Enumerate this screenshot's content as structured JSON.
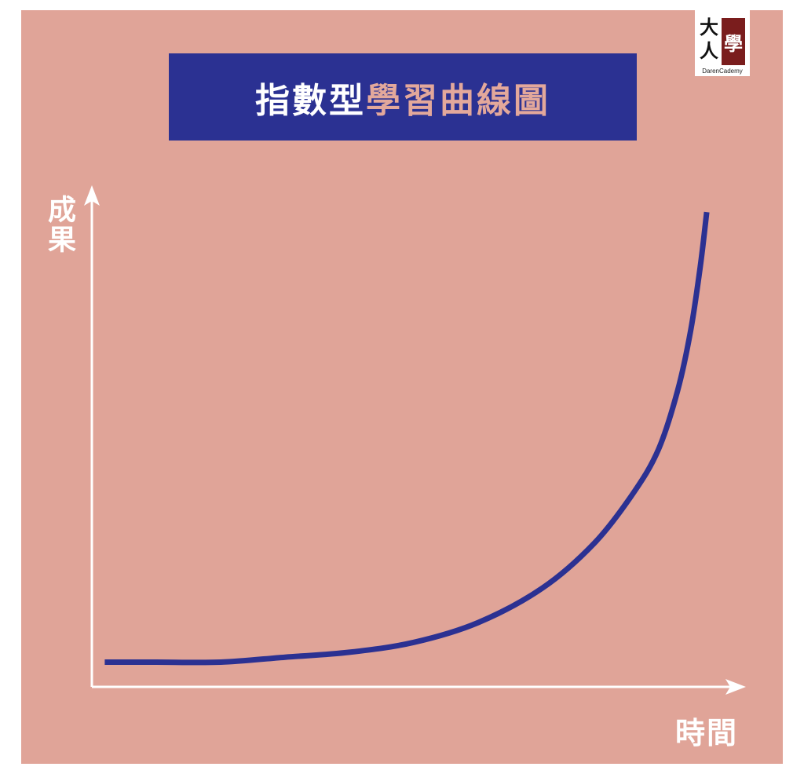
{
  "title": {
    "part1": "指數型",
    "part2": "學習曲線圖"
  },
  "logo": {
    "char_da": "大",
    "char_ren": "人",
    "char_xue": "學",
    "text": "DarenCademy"
  },
  "colors": {
    "background": "#e0a498",
    "title_box": "#2b3192",
    "curve": "#2b3192",
    "axis": "#ffffff",
    "title_highlight": "#e3a89b"
  },
  "chart_data": {
    "type": "line",
    "title": "指數型學習曲線圖",
    "xlabel": "時間",
    "ylabel": "成果",
    "xlim": [
      0,
      1
    ],
    "ylim": [
      0,
      1
    ],
    "grid": false,
    "series": [
      {
        "x": [
          0.02,
          0.1,
          0.2,
          0.3,
          0.4,
          0.5,
          0.6,
          0.7,
          0.78,
          0.84,
          0.88,
          0.91,
          0.93,
          0.945,
          0.955
        ],
        "values": [
          0.05,
          0.05,
          0.05,
          0.06,
          0.07,
          0.09,
          0.13,
          0.2,
          0.29,
          0.39,
          0.48,
          0.6,
          0.72,
          0.85,
          0.96
        ]
      }
    ]
  }
}
